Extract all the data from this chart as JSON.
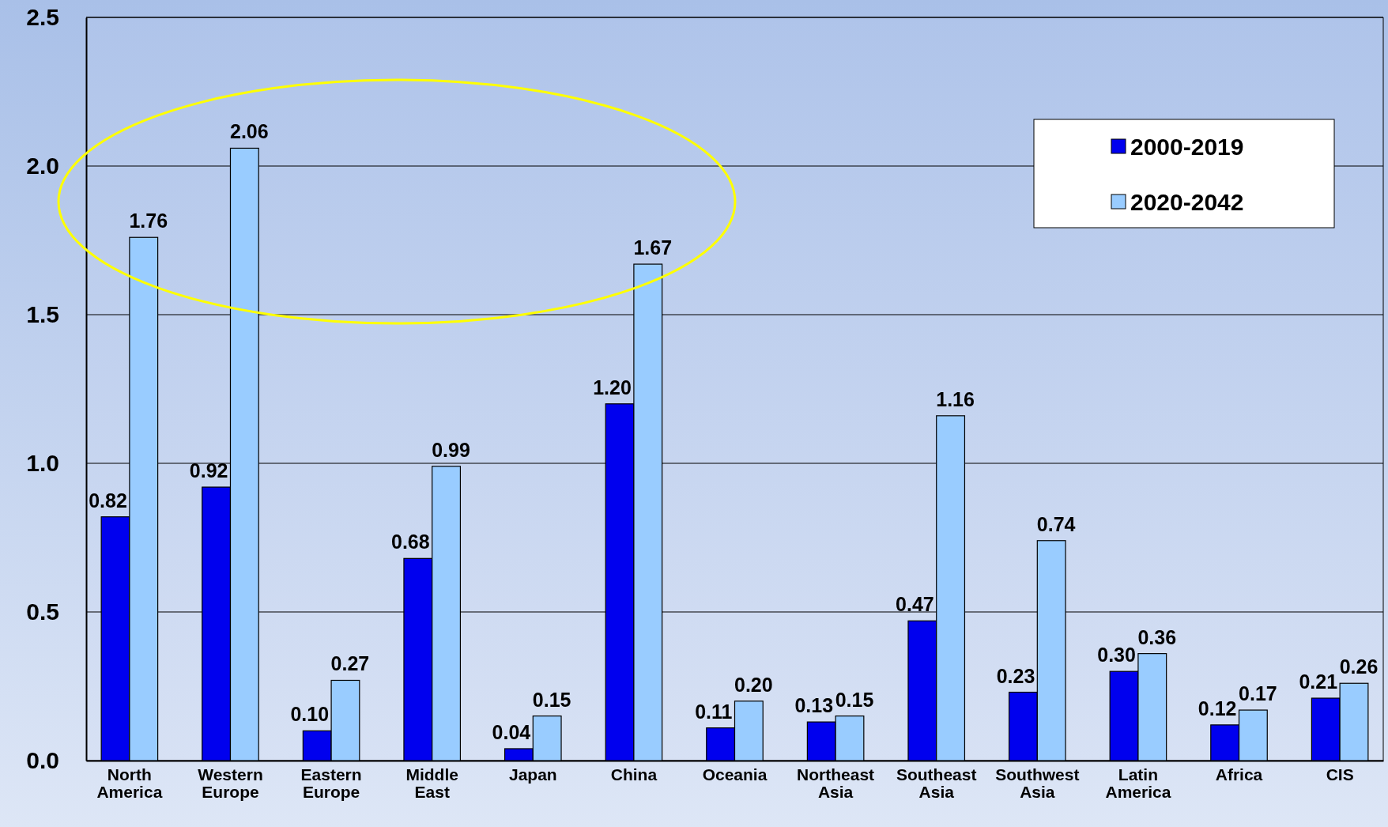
{
  "chart_data": {
    "type": "bar",
    "categories": [
      "North America",
      "Western Europe",
      "Eastern Europe",
      "Middle East",
      "Japan",
      "China",
      "Oceania",
      "Northeast Asia",
      "Southeast Asia",
      "Southwest Asia",
      "Latin America",
      "Africa",
      "CIS"
    ],
    "series": [
      {
        "name": "2000-2019",
        "color": "#0000ee",
        "values": [
          0.82,
          0.92,
          0.1,
          0.68,
          0.04,
          1.2,
          0.11,
          0.13,
          0.47,
          0.23,
          0.3,
          0.12,
          0.21
        ],
        "value_labels": [
          "0.82",
          "0.92",
          "0.10",
          "0.68",
          "0.04",
          "1.20",
          "0.11",
          "0.13",
          "0.47",
          "0.23",
          "0.30",
          "0.12",
          "0.21"
        ]
      },
      {
        "name": "2020-2042",
        "color": "#99ccff",
        "values": [
          1.76,
          2.06,
          0.27,
          0.99,
          0.15,
          1.67,
          0.2,
          0.15,
          1.16,
          0.74,
          0.36,
          0.17,
          0.26
        ],
        "value_labels": [
          "1.76",
          "2.06",
          "0.27",
          "0.99",
          "0.15",
          "1.67",
          "0.20",
          "0.15",
          "1.16",
          "0.74",
          "0.36",
          "0.17",
          "0.26"
        ]
      }
    ],
    "ylim": [
      0,
      2.5
    ],
    "yticks": [
      {
        "value": 0,
        "label": "0.0"
      },
      0.5,
      {
        "value": 1,
        "label": "1.0"
      },
      1.5,
      {
        "value": 2,
        "label": "2.0"
      },
      2.5
    ],
    "grid": "y",
    "legend": "top right"
  }
}
